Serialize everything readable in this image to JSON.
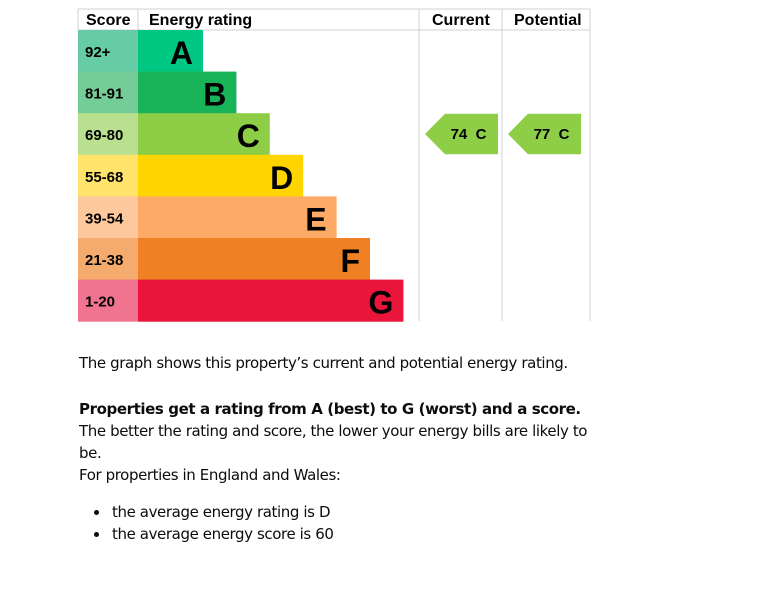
{
  "chart_data": {
    "type": "bar",
    "headers": {
      "score": "Score",
      "rating": "Energy rating",
      "current": "Current",
      "potential": "Potential"
    },
    "bands": [
      {
        "score": "92+",
        "letter": "A",
        "color": "#00c781",
        "score_color": "#66cca5"
      },
      {
        "score": "81-91",
        "letter": "B",
        "color": "#19b459",
        "score_color": "#74cc96"
      },
      {
        "score": "69-80",
        "letter": "C",
        "color": "#8dce46",
        "score_color": "#b9e08f"
      },
      {
        "score": "55-68",
        "letter": "D",
        "color": "#ffd500",
        "score_color": "#ffe36b"
      },
      {
        "score": "39-54",
        "letter": "E",
        "color": "#fcaa65",
        "score_color": "#fdc89b"
      },
      {
        "score": "21-38",
        "letter": "F",
        "color": "#ef8023",
        "score_color": "#f4ab6d"
      },
      {
        "score": "1-20",
        "letter": "G",
        "color": "#e9153b",
        "score_color": "#f07390"
      }
    ],
    "current": {
      "value": 74,
      "letter": "C",
      "label": "74  C",
      "color": "#8dce46"
    },
    "potential": {
      "value": 77,
      "letter": "C",
      "label": "77  C",
      "color": "#8dce46"
    }
  },
  "text": {
    "intro": "The graph shows this property’s current and potential energy rating.",
    "rating_bold": "Properties get a rating from A (best) to G (worst) and a score.",
    "rating_rest": " The better the rating and score, the lower your energy bills are likely to be.",
    "regional": "For properties in England and Wales:",
    "bullets": [
      "the average energy rating is D",
      "the average energy score is 60"
    ]
  }
}
